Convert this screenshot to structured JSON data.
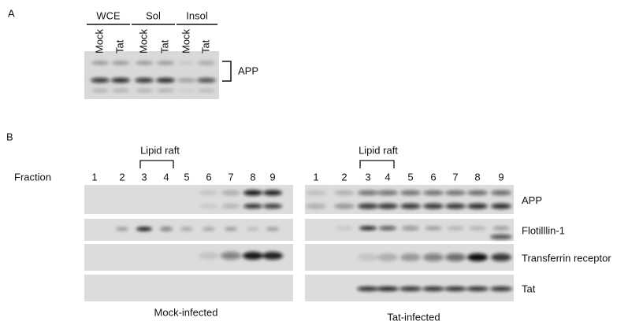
{
  "panel_a": {
    "label": "A",
    "groups": [
      {
        "name": "WCE",
        "lanes": [
          "Mock",
          "Tat"
        ]
      },
      {
        "name": "Sol",
        "lanes": [
          "Mock",
          "Tat"
        ]
      },
      {
        "name": "Insol",
        "lanes": [
          "Mock",
          "Tat"
        ]
      }
    ],
    "bracket_label": "APP"
  },
  "panel_b": {
    "label": "B",
    "fraction_label": "Fraction",
    "lipid_raft": "Lipid raft",
    "blots": [
      {
        "name": "Mock-infected",
        "fractions": [
          1,
          2,
          3,
          4,
          5,
          6,
          7,
          8,
          9
        ]
      },
      {
        "name": "Tat-infected",
        "fractions": [
          1,
          2,
          3,
          4,
          5,
          6,
          7,
          8,
          9
        ]
      }
    ],
    "proteins": [
      "APP",
      "Flotilllin-1",
      "Transferrin receptor",
      "Tat"
    ]
  }
}
